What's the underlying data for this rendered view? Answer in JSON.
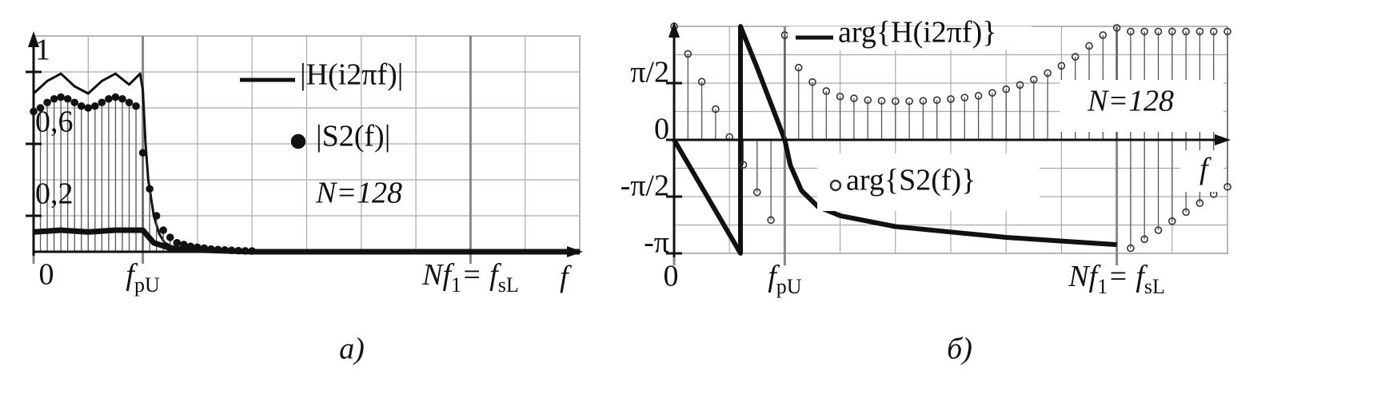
{
  "chart_data": [
    {
      "type": "line",
      "caption": "а)",
      "x_label": "f",
      "xlim": [
        0,
        10
      ],
      "ylim": [
        0,
        1.2
      ],
      "xticks": [
        0,
        {
          "value": 2,
          "label": [
            "f",
            "pU"
          ]
        },
        {
          "value": 8,
          "label": [
            "Nf",
            "1",
            "= f",
            "sL"
          ]
        }
      ],
      "yticks": [
        {
          "value": 0.2,
          "label": "0,2"
        },
        {
          "value": 0.6,
          "label": "0,6"
        },
        1
      ],
      "xgrid": [
        1,
        2,
        3,
        4,
        5,
        6,
        7,
        8,
        9,
        10
      ],
      "ygrid": [
        0.2,
        0.4,
        0.6,
        0.8,
        1.0,
        1.2
      ],
      "grid": true,
      "annotations": [
        "N=128"
      ],
      "series": [
        {
          "name": "|H(i2πf)|",
          "style": "line",
          "color": "#111111",
          "width": 3,
          "x": [
            0,
            0.25,
            0.5,
            0.75,
            1,
            1.25,
            1.5,
            1.75,
            1.95,
            2.0,
            2.05,
            2.1,
            2.2,
            2.3,
            2.4,
            2.6,
            3,
            4,
            10
          ],
          "values": [
            0.88,
            0.95,
            0.99,
            0.92,
            0.88,
            0.95,
            0.99,
            0.93,
            0.99,
            0.9,
            0.6,
            0.4,
            0.2,
            0.1,
            0.05,
            0.02,
            0.01,
            0,
            0
          ]
        },
        {
          "name": "|S2(f)|",
          "style": "points",
          "marker": "filled",
          "stems": true,
          "color": "#111111",
          "x": [
            0,
            0.125,
            0.25,
            0.375,
            0.5,
            0.625,
            0.75,
            0.875,
            1,
            1.125,
            1.25,
            1.375,
            1.5,
            1.625,
            1.75,
            1.875,
            2,
            2.125,
            2.25,
            2.375,
            2.5,
            2.625,
            2.75,
            2.875,
            3,
            3.125,
            3.25,
            3.375,
            3.5,
            3.625,
            3.75,
            3.875,
            4
          ],
          "values": [
            0.78,
            0.8,
            0.83,
            0.85,
            0.86,
            0.85,
            0.83,
            0.81,
            0.8,
            0.81,
            0.83,
            0.85,
            0.86,
            0.85,
            0.83,
            0.81,
            0.55,
            0.35,
            0.2,
            0.12,
            0.08,
            0.05,
            0.04,
            0.03,
            0.025,
            0.02,
            0.015,
            0.012,
            0.01,
            0.008,
            0.006,
            0.005,
            0.004
          ]
        },
        {
          "style": "line",
          "color": "#111111",
          "width": 7,
          "x": [
            0,
            0.5,
            1,
            1.5,
            2,
            2.2,
            2.5,
            3,
            4,
            10
          ],
          "values": [
            0.11,
            0.12,
            0.11,
            0.12,
            0.12,
            0.05,
            0.02,
            0.01,
            0,
            0
          ]
        }
      ]
    },
    {
      "type": "line",
      "caption": "б)",
      "x_label": "f",
      "xlim": [
        0,
        10
      ],
      "ylim": [
        -3.1416,
        3.1416
      ],
      "xticks": [
        0,
        {
          "value": 2,
          "label": [
            "f",
            "pU"
          ]
        },
        {
          "value": 8,
          "label": [
            "Nf",
            "1",
            "= f",
            "sL"
          ]
        }
      ],
      "yticks": [
        {
          "value": -3.1416,
          "label": "-π"
        },
        {
          "value": -1.5708,
          "label": "-π/2"
        },
        0,
        {
          "value": 1.5708,
          "label": "π/2"
        }
      ],
      "xgrid": [
        1,
        2,
        3,
        4,
        5,
        6,
        7,
        8,
        9,
        10
      ],
      "ygrid": [
        -3.1416,
        -2.3562,
        -1.5708,
        -0.7854,
        0,
        0.7854,
        1.5708,
        2.3562,
        3.1416
      ],
      "grid": true,
      "annotations": [
        "N=128"
      ],
      "series": [
        {
          "name": "arg{H(i2πf)}",
          "style": "line",
          "color": "#111111",
          "width": 6,
          "x": [
            0,
            1.2,
            1.2,
            1.5,
            1.8,
            2.0,
            2.1,
            2.3,
            2.6,
            3,
            4,
            5,
            6,
            7,
            8
          ],
          "values": [
            0,
            -3.14,
            3.14,
            2.0,
            0.8,
            0.0,
            -0.7,
            -1.4,
            -1.85,
            -2.1,
            -2.4,
            -2.55,
            -2.7,
            -2.8,
            -2.9
          ]
        },
        {
          "name": "arg{S2(f)}",
          "style": "points",
          "marker": "hollow",
          "stems": true,
          "color": "#333333",
          "x": [
            0,
            0.25,
            0.5,
            0.75,
            1,
            1.25,
            1.5,
            1.75,
            2,
            2.25,
            2.5,
            2.75,
            3,
            3.25,
            3.5,
            3.75,
            4,
            4.25,
            4.5,
            4.75,
            5,
            5.25,
            5.5,
            5.75,
            6,
            6.25,
            6.5,
            6.75,
            7,
            7.25,
            7.5,
            7.75,
            8,
            8.25,
            8.5,
            8.75,
            9,
            9.25,
            9.5,
            9.75,
            10,
            8.25,
            8.5,
            8.75,
            9,
            9.25,
            9.5,
            9.75,
            10
          ],
          "values": [
            3.14,
            2.38,
            1.61,
            0.85,
            0.08,
            -0.69,
            -1.45,
            -2.22,
            2.9,
            2.0,
            1.6,
            1.35,
            1.2,
            1.15,
            1.1,
            1.08,
            1.07,
            1.07,
            1.08,
            1.1,
            1.13,
            1.17,
            1.22,
            1.3,
            1.4,
            1.52,
            1.67,
            1.85,
            2.05,
            2.3,
            2.6,
            2.9,
            3.1,
            3.0,
            3.0,
            3.0,
            3.0,
            3.0,
            3.0,
            3.0,
            3.0,
            -3.0,
            -2.75,
            -2.5,
            -2.25,
            -2.0,
            -1.75,
            -1.5,
            -1.3
          ]
        }
      ]
    }
  ]
}
